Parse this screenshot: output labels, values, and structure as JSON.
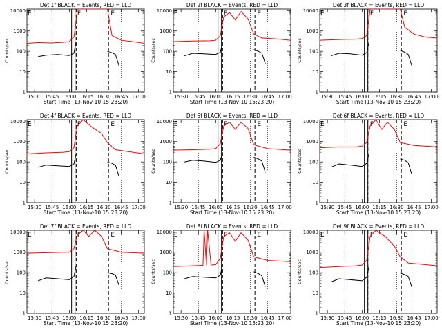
{
  "page": {
    "ylabel": "Counts/sec",
    "xlabel": "Start Time (13-Nov-10 15:23:20)"
  },
  "colors": {
    "events": "#000000",
    "lld": "#ff0000",
    "axes": "#000000"
  },
  "chart_data": [
    {
      "type": "line",
      "title": "Det 1f BLACK = Events, RED = LLD",
      "xlabel": "Start Time (13-Nov-10 15:23:20)",
      "ylabel": "Counts/sec",
      "ylog": true,
      "ylim": [
        1,
        12000
      ],
      "ytick_labels": [
        "1",
        "10",
        "100",
        "1000",
        "10000"
      ],
      "xtick_labels": [
        "15:30",
        "15:45",
        "16:00",
        "16:15",
        "16:30",
        "16:45",
        "17:00"
      ],
      "flag_labels": [
        "E",
        "F",
        "E"
      ],
      "series": [
        {
          "name": "Events",
          "x": [
            "15:33",
            "15:40",
            "15:50",
            "16:00",
            "16:04",
            "16:06",
            "16:33",
            "16:37",
            "16:40",
            "16:43"
          ],
          "values": [
            55,
            65,
            70,
            62,
            80,
            300,
            100,
            85,
            70,
            20
          ]
        },
        {
          "name": "LLD",
          "x": [
            "15:23",
            "15:33",
            "15:45",
            "15:55",
            "16:00",
            "16:04",
            "16:06",
            "16:07",
            "16:33",
            "16:37",
            "16:45",
            "16:55",
            "17:05"
          ],
          "values": [
            250,
            270,
            260,
            280,
            300,
            500,
            3000,
            12000,
            12000,
            600,
            350,
            300,
            250
          ]
        }
      ]
    },
    {
      "type": "line",
      "title": "Det 2f BLACK = Events, RED = LLD",
      "xlabel": "Start Time (13-Nov-10 15:23:20)",
      "ylabel": "Counts/sec",
      "ylog": true,
      "ylim": [
        1,
        12000
      ],
      "ytick_labels": [
        "1",
        "10",
        "100",
        "1000",
        "10000"
      ],
      "xtick_labels": [
        "15:30",
        "15:45",
        "16:00",
        "16:15",
        "16:30",
        "16:45",
        "17:00"
      ],
      "flag_labels": [
        "E",
        "F",
        "E"
      ],
      "series": [
        {
          "name": "Events",
          "x": [
            "15:33",
            "15:40",
            "15:50",
            "16:00",
            "16:04",
            "16:06",
            "16:33",
            "16:37",
            "16:40",
            "16:43"
          ],
          "values": [
            60,
            80,
            75,
            70,
            90,
            250,
            120,
            100,
            80,
            25
          ]
        },
        {
          "name": "LLD",
          "x": [
            "15:23",
            "15:40",
            "15:55",
            "16:00",
            "16:04",
            "16:07",
            "16:12",
            "16:17",
            "16:22",
            "16:28",
            "16:33",
            "16:40",
            "16:55",
            "17:05"
          ],
          "values": [
            300,
            320,
            330,
            350,
            600,
            5000,
            8000,
            3500,
            9000,
            4000,
            700,
            450,
            400,
            350
          ]
        }
      ]
    },
    {
      "type": "line",
      "title": "Det 3f BLACK = Events, RED = LLD",
      "xlabel": "Start Time (13-Nov-10 15:23:20)",
      "ylabel": "Counts/sec",
      "ylog": true,
      "ylim": [
        1,
        12000
      ],
      "ytick_labels": [
        "1",
        "10",
        "100",
        "1000",
        "10000"
      ],
      "xtick_labels": [
        "15:30",
        "15:45",
        "16:00",
        "16:15",
        "16:30",
        "16:45",
        "17:00"
      ],
      "flag_labels": [
        "E",
        "F",
        "E"
      ],
      "series": [
        {
          "name": "Events",
          "x": [
            "15:33",
            "15:40",
            "15:50",
            "16:00",
            "16:04",
            "16:06",
            "16:33",
            "16:37",
            "16:40",
            "16:43"
          ],
          "values": [
            60,
            80,
            75,
            65,
            85,
            280,
            110,
            90,
            70,
            20
          ]
        },
        {
          "name": "LLD",
          "x": [
            "15:23",
            "15:40",
            "15:55",
            "16:00",
            "16:04",
            "16:06",
            "16:07",
            "16:33",
            "16:37",
            "16:45",
            "16:55",
            "17:05"
          ],
          "values": [
            350,
            380,
            400,
            420,
            600,
            4000,
            12000,
            12000,
            1500,
            700,
            500,
            450
          ]
        }
      ]
    },
    {
      "type": "line",
      "title": "Det 4f BLACK = Events, RED = LLD",
      "xlabel": "Start Time (13-Nov-10 15:23:20)",
      "ylabel": "Counts/sec",
      "ylog": true,
      "ylim": [
        1,
        12000
      ],
      "ytick_labels": [
        "1",
        "10",
        "100",
        "1000",
        "10000"
      ],
      "xtick_labels": [
        "15:30",
        "15:45",
        "16:00",
        "16:15",
        "16:30",
        "16:45",
        "17:00"
      ],
      "flag_labels": [
        "E",
        "F",
        "E"
      ],
      "series": [
        {
          "name": "Events",
          "x": [
            "15:33",
            "15:40",
            "15:50",
            "16:00",
            "16:04",
            "16:06",
            "16:33",
            "16:37",
            "16:40",
            "16:43"
          ],
          "values": [
            55,
            70,
            65,
            60,
            80,
            250,
            100,
            85,
            70,
            20
          ]
        },
        {
          "name": "LLD",
          "x": [
            "15:23",
            "15:40",
            "15:55",
            "16:00",
            "16:04",
            "16:07",
            "16:12",
            "16:20",
            "16:28",
            "16:33",
            "16:40",
            "16:55",
            "17:05"
          ],
          "values": [
            250,
            280,
            300,
            320,
            500,
            6000,
            12000,
            5000,
            2500,
            900,
            400,
            300,
            250
          ]
        }
      ]
    },
    {
      "type": "line",
      "title": "Det 5f BLACK = Events, RED = LLD",
      "xlabel": "Start Time (13-Nov-10 15:23:20)",
      "ylabel": "Counts/sec",
      "ylog": true,
      "ylim": [
        1,
        12000
      ],
      "ytick_labels": [
        "1",
        "10",
        "100",
        "1000",
        "10000"
      ],
      "xtick_labels": [
        "15:30",
        "15:45",
        "16:00",
        "16:15",
        "16:30",
        "16:45",
        "17:00"
      ],
      "flag_labels": [
        "E",
        "F",
        "E"
      ],
      "series": [
        {
          "name": "Events",
          "x": [
            "15:33",
            "15:40",
            "15:50",
            "16:00",
            "16:04",
            "16:06",
            "16:33",
            "16:37",
            "16:40",
            "16:43"
          ],
          "values": [
            100,
            120,
            110,
            95,
            120,
            300,
            170,
            140,
            110,
            30
          ]
        },
        {
          "name": "LLD",
          "x": [
            "15:23",
            "15:40",
            "15:55",
            "16:00",
            "16:04",
            "16:07",
            "16:12",
            "16:17",
            "16:22",
            "16:28",
            "16:33",
            "16:45",
            "17:05"
          ],
          "values": [
            380,
            400,
            420,
            450,
            800,
            6000,
            9000,
            4000,
            9000,
            4500,
            700,
            450,
            380
          ]
        }
      ]
    },
    {
      "type": "line",
      "title": "Det 6f BLACK = Events, RED = LLD",
      "xlabel": "Start Time (13-Nov-10 15:23:20)",
      "ylabel": "Counts/sec",
      "ylog": true,
      "ylim": [
        1,
        12000
      ],
      "ytick_labels": [
        "1",
        "10",
        "100",
        "1000",
        "10000"
      ],
      "xtick_labels": [
        "15:30",
        "15:45",
        "16:00",
        "16:15",
        "16:30",
        "16:45",
        "17:00"
      ],
      "flag_labels": [
        "E",
        "F",
        "E"
      ],
      "series": [
        {
          "name": "Events",
          "x": [
            "15:33",
            "15:40",
            "15:50",
            "16:00",
            "16:04",
            "16:06",
            "16:33",
            "16:37",
            "16:40",
            "16:43"
          ],
          "values": [
            55,
            80,
            70,
            60,
            85,
            260,
            140,
            120,
            90,
            25
          ]
        },
        {
          "name": "LLD",
          "x": [
            "15:23",
            "15:40",
            "15:55",
            "16:00",
            "16:04",
            "16:07",
            "16:12",
            "16:17",
            "16:22",
            "16:28",
            "16:33",
            "16:45",
            "17:05"
          ],
          "values": [
            500,
            550,
            550,
            600,
            900,
            6000,
            12000,
            4000,
            9000,
            4000,
            900,
            650,
            550
          ]
        }
      ]
    },
    {
      "type": "line",
      "title": "Det 7f BLACK = Events, RED = LLD",
      "xlabel": "Start Time (13-Nov-10 15:23:20)",
      "ylabel": "Counts/sec",
      "ylog": true,
      "ylim": [
        1,
        12000
      ],
      "ytick_labels": [
        "1",
        "10",
        "100",
        "1000",
        "10000"
      ],
      "xtick_labels": [
        "15:30",
        "15:45",
        "16:00",
        "16:15",
        "16:30",
        "16:45",
        "17:00"
      ],
      "flag_labels": [
        "E",
        "F",
        "E"
      ],
      "series": [
        {
          "name": "Events",
          "x": [
            "15:33",
            "15:40",
            "15:50",
            "16:00",
            "16:04",
            "16:06",
            "16:33",
            "16:37",
            "16:40",
            "16:43"
          ],
          "values": [
            40,
            55,
            50,
            45,
            65,
            220,
            100,
            90,
            75,
            25
          ]
        },
        {
          "name": "LLD",
          "x": [
            "15:23",
            "15:40",
            "15:55",
            "16:00",
            "16:04",
            "16:07",
            "16:12",
            "16:17",
            "16:22",
            "16:28",
            "16:33",
            "16:45",
            "17:05"
          ],
          "values": [
            900,
            950,
            1000,
            1000,
            1500,
            7000,
            12000,
            6000,
            12000,
            6000,
            1500,
            1000,
            900
          ]
        }
      ]
    },
    {
      "type": "line",
      "title": "Det 8f BLACK = Events, RED = LLD",
      "xlabel": "Start Time (13-Nov-10 15:23:20)",
      "ylabel": "Counts/sec",
      "ylog": true,
      "ylim": [
        1,
        12000
      ],
      "ytick_labels": [
        "1",
        "10",
        "100",
        "1000",
        "10000"
      ],
      "xtick_labels": [
        "15:30",
        "15:45",
        "16:00",
        "16:15",
        "16:30",
        "16:45",
        "17:00"
      ],
      "flag_labels": [
        "E",
        "F",
        "E"
      ],
      "series": [
        {
          "name": "Events",
          "x": [
            "15:33",
            "15:40",
            "15:50",
            "16:00",
            "16:04",
            "16:06",
            "16:33",
            "16:37",
            "16:40",
            "16:43"
          ],
          "values": [
            50,
            65,
            60,
            55,
            75,
            250,
            110,
            90,
            70,
            20
          ]
        },
        {
          "name": "LLD",
          "x": [
            "15:23",
            "15:40",
            "15:49",
            "15:50",
            "15:52",
            "15:53",
            "15:56",
            "16:00",
            "16:04",
            "16:07",
            "16:12",
            "16:17",
            "16:22",
            "16:28",
            "16:33",
            "16:45",
            "17:05"
          ],
          "values": [
            200,
            220,
            230,
            12000,
            230,
            12000,
            240,
            250,
            500,
            6000,
            9000,
            3500,
            9000,
            4000,
            600,
            400,
            350
          ]
        }
      ]
    },
    {
      "type": "line",
      "title": "Det 9f BLACK = Events, RED = LLD",
      "xlabel": "Start Time (13-Nov-10 15:23:20)",
      "ylabel": "Counts/sec",
      "ylog": true,
      "ylim": [
        1,
        12000
      ],
      "ytick_labels": [
        "1",
        "10",
        "100",
        "1000",
        "10000"
      ],
      "xtick_labels": [
        "15:30",
        "15:45",
        "16:00",
        "16:15",
        "16:30",
        "16:45",
        "17:00"
      ],
      "flag_labels": [
        "E",
        "F",
        "E"
      ],
      "series": [
        {
          "name": "Events",
          "x": [
            "15:33",
            "15:40",
            "15:50",
            "16:00",
            "16:04",
            "16:06",
            "16:33",
            "16:37",
            "16:40",
            "16:43"
          ],
          "values": [
            35,
            50,
            45,
            40,
            60,
            200,
            95,
            80,
            65,
            20
          ]
        },
        {
          "name": "LLD",
          "x": [
            "15:23",
            "15:40",
            "15:55",
            "16:00",
            "16:04",
            "16:07",
            "16:12",
            "16:20",
            "16:28",
            "16:33",
            "16:40",
            "16:55",
            "17:05"
          ],
          "values": [
            180,
            200,
            220,
            240,
            400,
            6000,
            12000,
            6000,
            2000,
            600,
            300,
            250,
            220
          ]
        }
      ]
    }
  ]
}
